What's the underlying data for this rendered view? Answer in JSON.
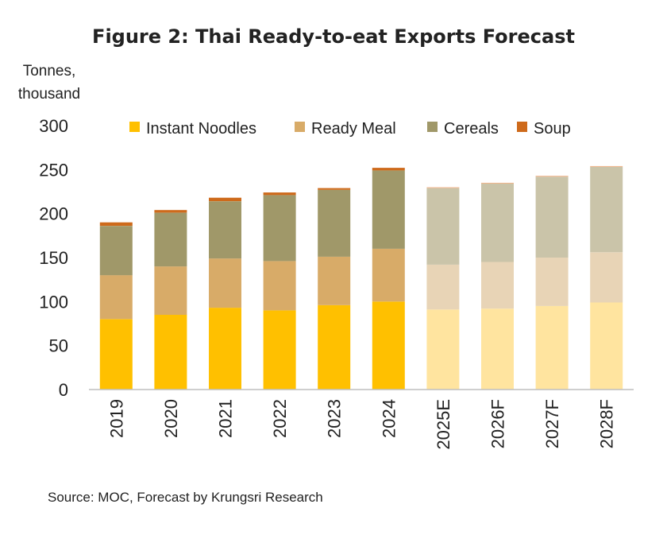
{
  "chart_data": {
    "type": "bar",
    "stacked": true,
    "title": "Figure 2: Thai Ready-to-eat Exports Forecast",
    "ylabel_lines": [
      "Tonnes,",
      "thousand"
    ],
    "xlabel": "",
    "ylim": [
      0,
      300
    ],
    "yticks": [
      0,
      50,
      100,
      150,
      200,
      250,
      300
    ],
    "grid": false,
    "legend_position": "top",
    "categories": [
      "2019",
      "2020",
      "2021",
      "2022",
      "2023",
      "2024",
      "2025E",
      "2026F",
      "2027F",
      "2028F"
    ],
    "forecast_from_index": 6,
    "series": [
      {
        "name": "Instant Noodles",
        "color": "#FFC000",
        "forecast_color": "#FFE49F",
        "values": [
          80,
          85,
          93,
          90,
          96,
          100,
          91,
          92,
          95,
          99
        ]
      },
      {
        "name": "Ready Meal",
        "color": "#D8AB68",
        "forecast_color": "#E8D4B6",
        "values": [
          50,
          55,
          56,
          56,
          55,
          60,
          51,
          53,
          55,
          57
        ]
      },
      {
        "name": "Cereals",
        "color": "#A09869",
        "forecast_color": "#CAC4A9",
        "values": [
          56,
          61,
          65,
          75,
          76,
          89,
          87,
          89,
          92,
          97
        ]
      },
      {
        "name": "Soup",
        "color": "#CE6A1B",
        "forecast_color": "#F0B78F",
        "values": [
          4,
          3,
          4,
          3,
          2,
          3,
          1,
          1,
          1,
          1
        ]
      }
    ],
    "source": "Source: MOC, Forecast by Krungsri Research"
  }
}
